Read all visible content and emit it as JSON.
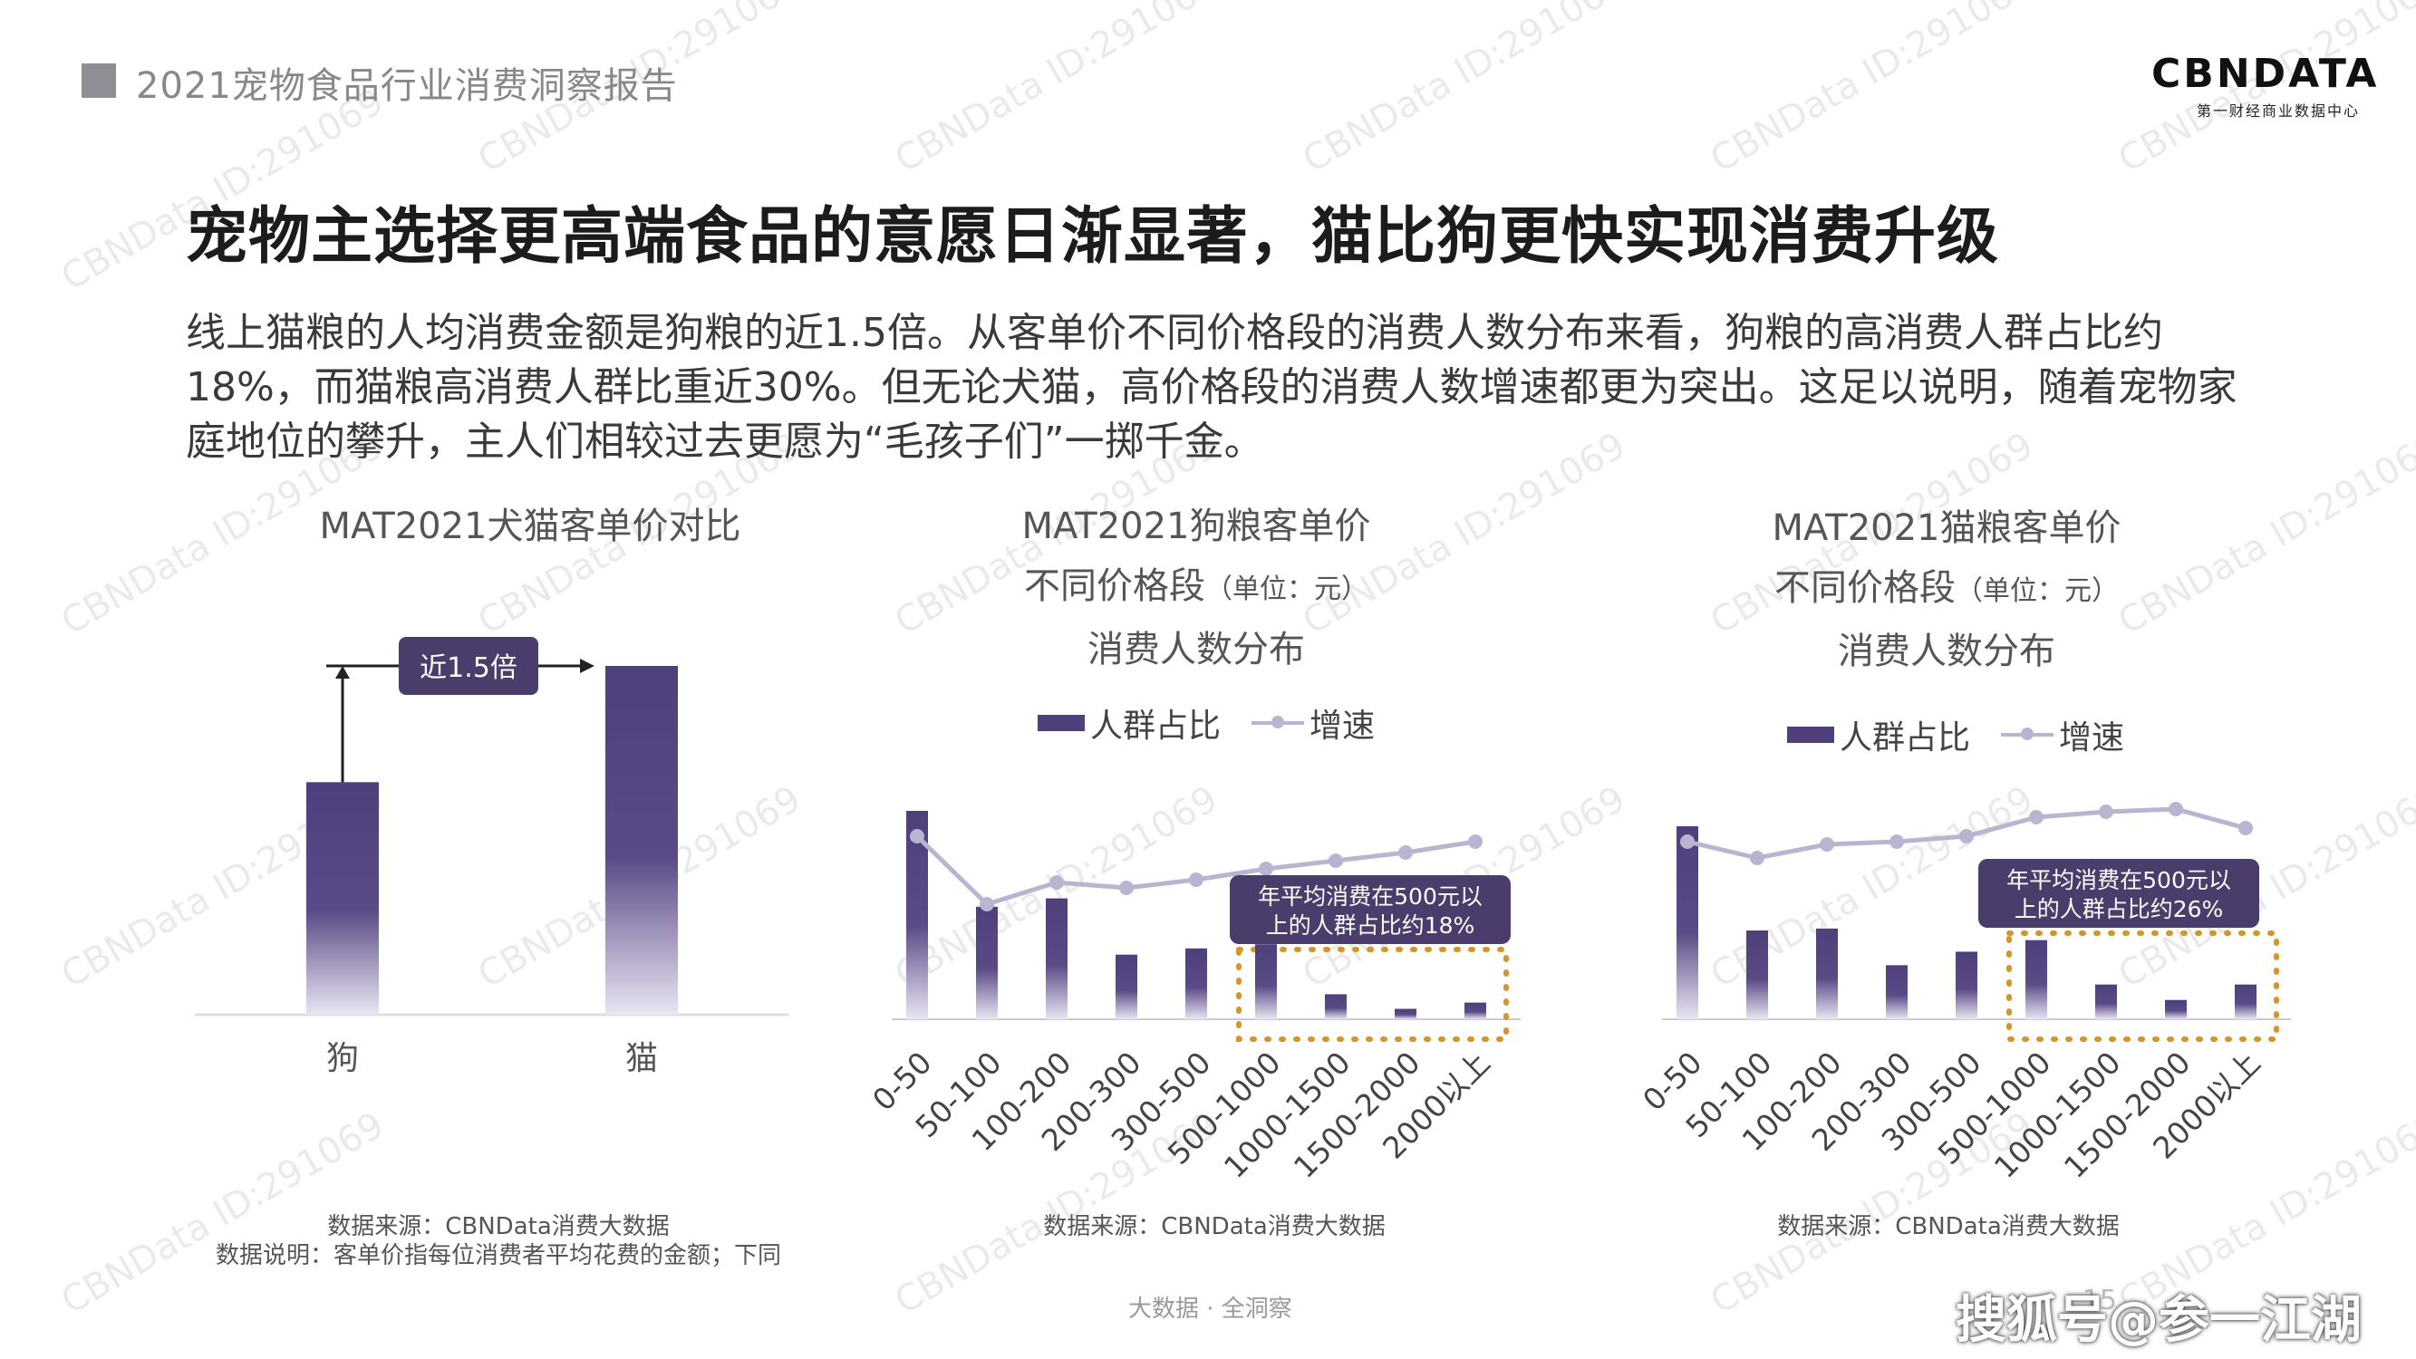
{
  "header": {
    "report_title": "2021宠物食品行业消费洞察报告",
    "logo_main": "CBNDATA",
    "logo_sub": "第一财经商业数据中心"
  },
  "headline": "宠物主选择更高端食品的意愿日渐显著，猫比狗更快实现消费升级",
  "description": "线上猫粮的人均消费金额是狗粮的近1.5倍。从客单价不同价格段的消费人数分布来看，狗粮的高消费人群占比约18%，而猫粮高消费人群比重近30%。但无论犬猫，高价格段的消费人数增速都更为突出。这足以说明，随着宠物家庭地位的攀升，主人们相较过去更愿为“毛孩子们”一掷千金。",
  "colors": {
    "bar": "#4f3f7a",
    "line": "#b9b4cf",
    "callout_bg": "#4a3d6b",
    "highlight_border": "#d4952a"
  },
  "chart_data": [
    {
      "type": "bar",
      "title": "MAT2021犬猫客单价对比",
      "categories": [
        "狗",
        "猫"
      ],
      "values": [
        1.0,
        1.5
      ],
      "annotation": "近1.5倍",
      "source": "数据来源：CBNData消费大数据",
      "note": "数据说明：客单价指每位消费者平均花费的金额；下同"
    },
    {
      "type": "bar",
      "title_lines": [
        "MAT2021狗粮客单价",
        "不同价格段",
        "消费人数分布"
      ],
      "unit": "（单位：元）",
      "legend": [
        "人群占比",
        "增速"
      ],
      "categories": [
        "0-50",
        "50-100",
        "100-200",
        "200-300",
        "300-500",
        "500-1000",
        "1000-1500",
        "1500-2000",
        "2000以上"
      ],
      "series": [
        {
          "name": "人群占比",
          "kind": "bar",
          "values": [
            100,
            54,
            58,
            31,
            34,
            36,
            12,
            5,
            8
          ]
        },
        {
          "name": "增速",
          "kind": "line",
          "values": [
            60,
            35,
            43,
            41,
            44,
            48,
            51,
            54,
            58
          ]
        }
      ],
      "callout": "年平均消费在500元以上的人群占比约18%",
      "highlight_range": [
        "500-1000",
        "2000以上"
      ],
      "source": "数据来源：CBNData消费大数据"
    },
    {
      "type": "bar",
      "title_lines": [
        "MAT2021猫粮客单价",
        "不同价格段",
        "消费人数分布"
      ],
      "unit": "（单位：元）",
      "legend": [
        "人群占比",
        "增速"
      ],
      "categories": [
        "0-50",
        "50-100",
        "100-200",
        "200-300",
        "300-500",
        "500-1000",
        "1000-1500",
        "1500-2000",
        "2000以上"
      ],
      "series": [
        {
          "name": "人群占比",
          "kind": "bar",
          "values": [
            100,
            46,
            47,
            28,
            35,
            41,
            18,
            10,
            18
          ]
        },
        {
          "name": "增速",
          "kind": "line",
          "values": [
            58,
            52,
            57,
            58,
            60,
            67,
            69,
            70,
            63
          ]
        }
      ],
      "callout": "年平均消费在500元以上的人群占比约26%",
      "highlight_range": [
        "500-1000",
        "2000以上"
      ],
      "source": "数据来源：CBNData消费大数据"
    }
  ],
  "footer": {
    "center": "大数据 · 全洞察",
    "page": "15",
    "brand_watermark": "搜狐号@参一江湖"
  },
  "watermark_text": "CBNData ID:291069"
}
